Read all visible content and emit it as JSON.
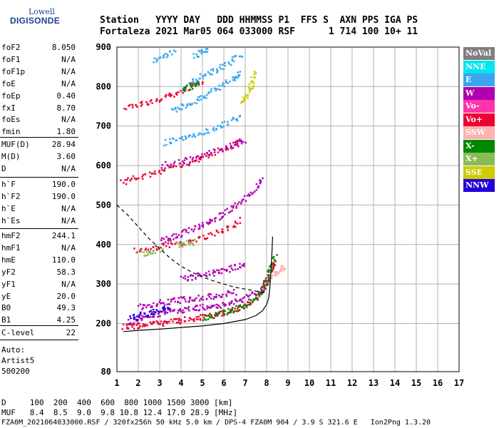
{
  "logo": {
    "line1": "Lowell",
    "line2": "DIGISONDE"
  },
  "header": {
    "row1": "Station   YYYY DAY   DDD HHMMSS P1  FFS S  AXN PPS IGA PS",
    "row2": "Fortaleza 2021 Mar05 064 033000 RSF      1 714 100 10+ 11"
  },
  "params": {
    "g1": [
      [
        "foF2",
        "8.050"
      ],
      [
        "foF1",
        "N/A"
      ],
      [
        "foF1p",
        "N/A"
      ],
      [
        "foE",
        "N/A"
      ],
      [
        "foEp",
        "0.40"
      ],
      [
        "fxI",
        "8.70"
      ],
      [
        "foEs",
        "N/A"
      ],
      [
        "fmin",
        "1.80"
      ]
    ],
    "g2": [
      [
        "MUF(D)",
        "28.94"
      ],
      [
        "M(D)",
        "3.60"
      ],
      [
        "D",
        "N/A"
      ]
    ],
    "g3": [
      [
        "h`F",
        "190.0"
      ],
      [
        "h`F2",
        "190.0"
      ],
      [
        "h`E",
        "N/A"
      ],
      [
        "h`Es",
        "N/A"
      ]
    ],
    "g4": [
      [
        "hmF2",
        "244.1"
      ],
      [
        "hmF1",
        "N/A"
      ],
      [
        "hmE",
        "110.0"
      ],
      [
        "yF2",
        "58.3"
      ],
      [
        "yF1",
        "N/A"
      ],
      [
        "yE",
        "20.0"
      ],
      [
        "B0",
        "49.3"
      ],
      [
        "B1",
        "4.25"
      ]
    ],
    "g5": [
      [
        "C-level",
        "22"
      ]
    ],
    "auto": [
      "Auto:",
      "Artist5",
      "500200"
    ]
  },
  "footer": {
    "d_row": "D     100  200  400  600  800 1000 1500 3000 [km]",
    "muf_row": "MUF   8.4  8.5  9.0  9.8 10.8 12.4 17.0 28.9 [MHz]",
    "file_row": "FZA0M_2021064033000.RSF / 320fx256h 50 kHz 5.0 km / DPS-4 FZA0M 904 / 3.9 S 321.6 E   Ion2Png 1.3.20"
  },
  "legend": [
    {
      "label": "NoVal",
      "color": "#7f7f7f"
    },
    {
      "label": "NNE",
      "color": "#00e5ee"
    },
    {
      "label": "E",
      "color": "#3ba6ee"
    },
    {
      "label": "W",
      "color": "#b000b0"
    },
    {
      "label": "Vo-",
      "color": "#ff33aa"
    },
    {
      "label": "Vo+",
      "color": "#ee0033"
    },
    {
      "label": "SSW",
      "color": "#ffb0b0"
    },
    {
      "label": "X-",
      "color": "#008800"
    },
    {
      "label": "X+",
      "color": "#88bb55"
    },
    {
      "label": "SSE",
      "color": "#cccc00"
    },
    {
      "label": "NNW",
      "color": "#2200dd"
    }
  ],
  "chart_data": {
    "type": "scatter",
    "title": "",
    "xlabel": "",
    "ylabel": "",
    "xlim": [
      1,
      17
    ],
    "ylim": [
      80,
      900
    ],
    "xticks": [
      1,
      2,
      3,
      4,
      5,
      6,
      7,
      8,
      9,
      10,
      11,
      12,
      13,
      14,
      15,
      16,
      17
    ],
    "yticks": [
      80,
      200,
      300,
      400,
      500,
      600,
      700,
      800,
      900
    ],
    "grid": true,
    "legend_position": "right",
    "traces": [
      {
        "color": "#ee0033",
        "points": [
          [
            1.3,
            193
          ],
          [
            1.6,
            195
          ],
          [
            2.0,
            197
          ],
          [
            2.5,
            200
          ],
          [
            3.0,
            203
          ],
          [
            3.5,
            206
          ],
          [
            4.0,
            210
          ],
          [
            4.5,
            214
          ],
          [
            5.0,
            218
          ],
          [
            5.5,
            223
          ],
          [
            6.0,
            229
          ],
          [
            6.5,
            237
          ],
          [
            7.0,
            248
          ],
          [
            7.5,
            265
          ],
          [
            7.8,
            285
          ],
          [
            8.0,
            310
          ],
          [
            8.2,
            340
          ],
          [
            8.3,
            360
          ]
        ]
      },
      {
        "color": "#ee0033",
        "points": [
          [
            1.2,
            560
          ],
          [
            1.8,
            570
          ],
          [
            2.5,
            580
          ],
          [
            3.2,
            590
          ],
          [
            4.0,
            603
          ],
          [
            4.8,
            617
          ],
          [
            5.5,
            632
          ],
          [
            6.2,
            650
          ],
          [
            6.8,
            668
          ]
        ]
      },
      {
        "color": "#ee0033",
        "points": [
          [
            1.4,
            750
          ],
          [
            2.0,
            757
          ],
          [
            2.6,
            765
          ],
          [
            3.2,
            775
          ],
          [
            3.8,
            788
          ],
          [
            4.4,
            803
          ],
          [
            5.0,
            817
          ]
        ]
      },
      {
        "color": "#ee0033",
        "points": [
          [
            1.8,
            385
          ],
          [
            2.5,
            390
          ],
          [
            3.2,
            397
          ],
          [
            4.0,
            405
          ],
          [
            4.8,
            415
          ],
          [
            5.5,
            428
          ],
          [
            6.2,
            445
          ],
          [
            6.8,
            465
          ]
        ]
      },
      {
        "color": "#b000b0",
        "points": [
          [
            1.5,
            205
          ],
          [
            2.0,
            215
          ],
          [
            2.5,
            222
          ],
          [
            3.0,
            228
          ],
          [
            3.5,
            232
          ],
          [
            4.0,
            236
          ],
          [
            4.5,
            240
          ],
          [
            5.0,
            243
          ],
          [
            5.5,
            246
          ],
          [
            6.0,
            250
          ],
          [
            6.5,
            256
          ],
          [
            7.0,
            265
          ],
          [
            7.5,
            280
          ],
          [
            8.0,
            310
          ]
        ]
      },
      {
        "color": "#b000b0",
        "points": [
          [
            2.0,
            245
          ],
          [
            2.5,
            250
          ],
          [
            3.0,
            255
          ],
          [
            3.5,
            258
          ],
          [
            4.0,
            262
          ],
          [
            4.5,
            265
          ],
          [
            5.0,
            268
          ],
          [
            5.5,
            272
          ],
          [
            6.0,
            276
          ],
          [
            6.5,
            282
          ]
        ]
      },
      {
        "color": "#b000b0",
        "points": [
          [
            3.0,
            410
          ],
          [
            3.5,
            420
          ],
          [
            4.0,
            430
          ],
          [
            4.5,
            440
          ],
          [
            5.0,
            452
          ],
          [
            5.5,
            465
          ],
          [
            6.0,
            480
          ],
          [
            6.5,
            498
          ],
          [
            7.0,
            520
          ],
          [
            7.5,
            545
          ],
          [
            7.8,
            570
          ]
        ]
      },
      {
        "color": "#b000b0",
        "points": [
          [
            4.0,
            315
          ],
          [
            4.5,
            320
          ],
          [
            5.0,
            325
          ],
          [
            5.5,
            330
          ],
          [
            6.0,
            337
          ],
          [
            6.5,
            345
          ],
          [
            7.0,
            355
          ]
        ]
      },
      {
        "color": "#b000b0",
        "points": [
          [
            3.0,
            600
          ],
          [
            3.8,
            610
          ],
          [
            4.5,
            620
          ],
          [
            5.2,
            632
          ],
          [
            6.0,
            645
          ],
          [
            6.5,
            655
          ],
          [
            7.0,
            668
          ]
        ]
      },
      {
        "color": "#3ba6ee",
        "points": [
          [
            3.2,
            660
          ],
          [
            3.8,
            667
          ],
          [
            4.4,
            675
          ],
          [
            5.0,
            685
          ],
          [
            5.6,
            698
          ],
          [
            6.2,
            712
          ],
          [
            6.8,
            728
          ]
        ]
      },
      {
        "color": "#3ba6ee",
        "points": [
          [
            3.5,
            740
          ],
          [
            4.0,
            752
          ],
          [
            4.5,
            764
          ],
          [
            5.0,
            777
          ],
          [
            5.5,
            792
          ],
          [
            6.0,
            808
          ],
          [
            6.5,
            825
          ],
          [
            6.8,
            838
          ]
        ]
      },
      {
        "color": "#3ba6ee",
        "points": [
          [
            4.3,
            810
          ],
          [
            4.8,
            823
          ],
          [
            5.3,
            836
          ],
          [
            5.8,
            850
          ],
          [
            6.3,
            866
          ],
          [
            6.8,
            882
          ]
        ]
      },
      {
        "color": "#3ba6ee",
        "points": [
          [
            2.7,
            870
          ],
          [
            3.2,
            880
          ],
          [
            3.7,
            890
          ]
        ]
      },
      {
        "color": "#3ba6ee",
        "points": [
          [
            4.6,
            880
          ],
          [
            5.0,
            892
          ],
          [
            5.2,
            898
          ]
        ]
      },
      {
        "color": "#008800",
        "points": [
          [
            5.0,
            215
          ],
          [
            5.5,
            222
          ],
          [
            6.0,
            230
          ],
          [
            6.5,
            238
          ],
          [
            7.0,
            250
          ],
          [
            7.5,
            268
          ],
          [
            7.8,
            290
          ],
          [
            8.0,
            315
          ],
          [
            8.2,
            345
          ],
          [
            8.4,
            375
          ]
        ]
      },
      {
        "color": "#008800",
        "points": [
          [
            4.0,
            795
          ],
          [
            4.4,
            802
          ],
          [
            4.8,
            812
          ]
        ]
      },
      {
        "color": "#88bb55",
        "points": [
          [
            2.0,
            378
          ],
          [
            2.6,
            384
          ],
          [
            3.2,
            390
          ]
        ]
      },
      {
        "color": "#88bb55",
        "points": [
          [
            3.8,
            400
          ],
          [
            4.2,
            404
          ],
          [
            4.6,
            410
          ]
        ]
      },
      {
        "color": "#cccc00",
        "points": [
          [
            6.8,
            760
          ],
          [
            7.0,
            775
          ],
          [
            7.2,
            795
          ],
          [
            7.3,
            815
          ],
          [
            7.4,
            840
          ]
        ]
      },
      {
        "color": "#2200dd",
        "points": [
          [
            1.6,
            215
          ],
          [
            2.0,
            222
          ],
          [
            2.5,
            230
          ],
          [
            3.0,
            236
          ],
          [
            3.5,
            240
          ]
        ]
      },
      {
        "color": "#ffb0b0",
        "points": [
          [
            8.2,
            320
          ],
          [
            8.4,
            330
          ],
          [
            8.6,
            340
          ],
          [
            8.8,
            345
          ]
        ]
      }
    ],
    "curves": [
      {
        "style": "solid",
        "color": "#000000",
        "points": [
          [
            1.3,
            180
          ],
          [
            2,
            183
          ],
          [
            3,
            186
          ],
          [
            4,
            190
          ],
          [
            5,
            194
          ],
          [
            6,
            200
          ],
          [
            7,
            210
          ],
          [
            7.5,
            220
          ],
          [
            7.8,
            232
          ],
          [
            8.0,
            248
          ],
          [
            8.1,
            265
          ],
          [
            8.15,
            290
          ],
          [
            8.2,
            330
          ],
          [
            8.25,
            380
          ],
          [
            8.28,
            420
          ]
        ]
      },
      {
        "style": "dashed",
        "color": "#000000",
        "points": [
          [
            1.0,
            500
          ],
          [
            1.5,
            475
          ],
          [
            2.0,
            445
          ],
          [
            2.5,
            415
          ],
          [
            3.0,
            390
          ],
          [
            3.5,
            365
          ],
          [
            4.0,
            345
          ],
          [
            4.5,
            330
          ],
          [
            5.0,
            318
          ],
          [
            5.5,
            308
          ],
          [
            6.0,
            300
          ],
          [
            6.5,
            292
          ],
          [
            7.0,
            287
          ],
          [
            7.5,
            282
          ],
          [
            8.0,
            278
          ]
        ]
      }
    ]
  }
}
